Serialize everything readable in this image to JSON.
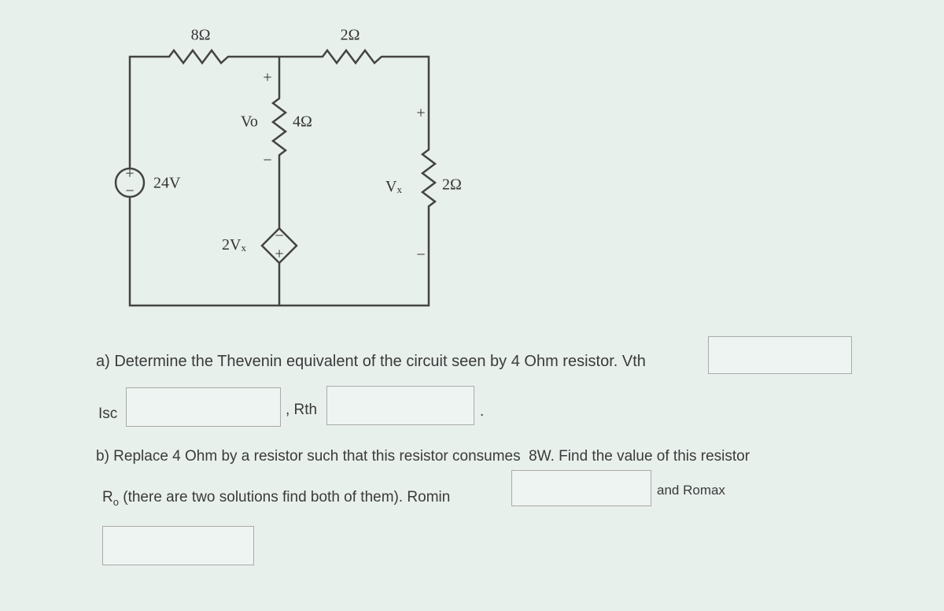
{
  "circuit": {
    "r_top_left": "8Ω",
    "r_top_right": "2Ω",
    "r_middle": "4Ω",
    "r_right": "2Ω",
    "source": "24V",
    "source_signs": [
      "+",
      "−"
    ],
    "vo": "Vo",
    "vo_signs": [
      "+",
      "−"
    ],
    "vx": {
      "main": "V",
      "sub": "x"
    },
    "vx_signs": [
      "+",
      "−"
    ],
    "dep_source": {
      "main": "2V",
      "sub": "x"
    },
    "dep_signs": [
      "−",
      "+"
    ]
  },
  "part_a": {
    "text": "a) Determine the Thevenin equivalent of the circuit seen by 4 Ohm resistor. Vth",
    "isc": "Isc",
    "rth": ", Rth",
    "period": "."
  },
  "part_b": {
    "line1": "b) Replace 4 Ohm by a resistor such that this resistor consumes  8W. Find the value of this resistor",
    "r": "R",
    "sub": "o",
    "line2": " (there are two solutions find both of them). Romin",
    "and_romax": "and Romax"
  }
}
